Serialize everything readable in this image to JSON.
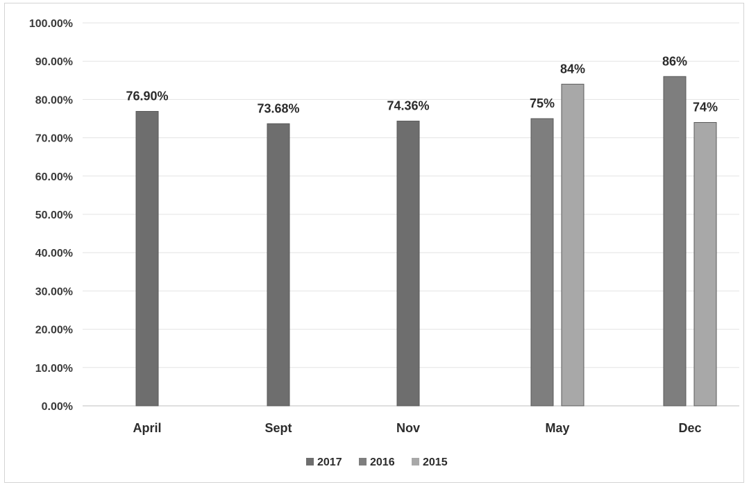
{
  "chart_data": {
    "type": "bar",
    "categories": [
      "April",
      "Sept",
      "Nov",
      "May",
      "Dec"
    ],
    "ylim": [
      0,
      100
    ],
    "yticks": [
      "0.00%",
      "10.00%",
      "20.00%",
      "30.00%",
      "40.00%",
      "50.00%",
      "60.00%",
      "70.00%",
      "80.00%",
      "90.00%",
      "100.00%"
    ],
    "grid": true,
    "legend_position": "bottom",
    "series": [
      {
        "name": "2017",
        "color": "#6e6e6e",
        "values": [
          76.9,
          73.68,
          74.36,
          null,
          null
        ],
        "labels": [
          "76.90%",
          "73.68%",
          "74.36%",
          "",
          ""
        ]
      },
      {
        "name": "2016",
        "color": "#7e7e7e",
        "values": [
          null,
          null,
          null,
          75,
          86
        ],
        "labels": [
          "",
          "",
          "",
          "75%",
          "86%"
        ]
      },
      {
        "name": "2015",
        "color": "#a8a8a8",
        "values": [
          null,
          null,
          null,
          84,
          74
        ],
        "labels": [
          "",
          "",
          "",
          "84%",
          "74%"
        ]
      }
    ]
  }
}
